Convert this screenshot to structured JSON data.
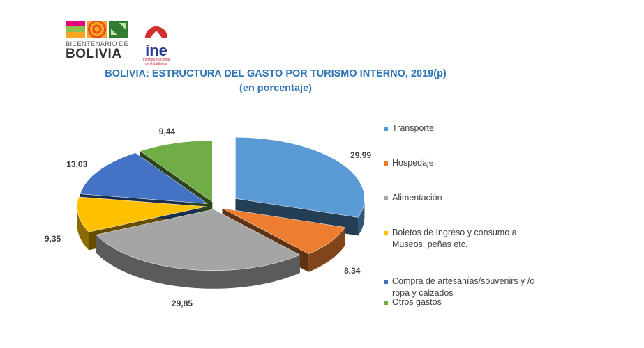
{
  "logos": {
    "bicentenario": "BICENTENARIO DE BOLIVIA",
    "bicentenario_line1": "BICENTENARIO DE",
    "bicentenario_line2": "BOLIVIA",
    "ine": "ine",
    "ine_sub": "Instituto Nacional de Estadística"
  },
  "chart_data": {
    "type": "pie",
    "title": "BOLIVIA: ESTRUCTURA DEL GASTO POR TURISMO INTERNO, 2019(p)",
    "subtitle": "(en porcentaje)",
    "categories": [
      "Transporte",
      "Hospedaje",
      "Alimentación",
      "Boletos de Ingreso y consumo a Museos, peñas etc.",
      "Compra de artesanías/souvenirs y /o ropa y calzados",
      "Otros gastos"
    ],
    "legend_lines": [
      [
        "Transporte"
      ],
      [
        "Hospedaje"
      ],
      [
        "Alimentación"
      ],
      [
        "Boletos de Ingreso y consumo a",
        "Museos, peñas etc."
      ],
      [
        "Compra de artesanías/souvenirs y /o",
        "ropa y calzados"
      ],
      [
        "Otros gastos"
      ]
    ],
    "values": [
      29.99,
      8.34,
      29.85,
      9.35,
      13.03,
      9.44
    ],
    "data_labels": [
      "29,99",
      "8,34",
      "29,85",
      "9,35",
      "13,03",
      "9,44"
    ],
    "colors": [
      "#5b9bd5",
      "#ed7d31",
      "#a5a5a5",
      "#ffc000",
      "#4472c4",
      "#70ad47"
    ],
    "legend_position": "right",
    "style": "3d-exploded"
  }
}
